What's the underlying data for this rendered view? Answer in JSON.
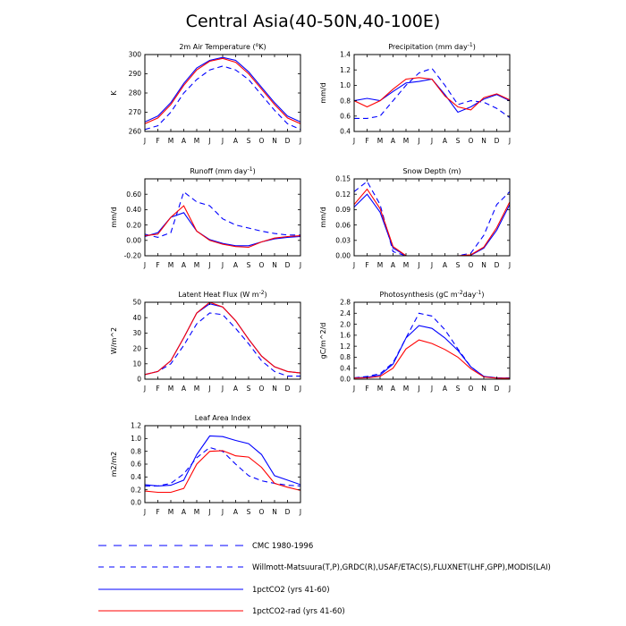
{
  "title": "Central Asia(40-50N,40-100E)",
  "months": [
    "J",
    "F",
    "M",
    "A",
    "M",
    "J",
    "J",
    "A",
    "S",
    "O",
    "N",
    "D",
    "J"
  ],
  "colors": {
    "cmc": "#0000ff",
    "obs": "#0000ff",
    "ctl": "#0000ff",
    "rad": "#ff0000"
  },
  "legend": {
    "cmc": "CMC 1980-1996",
    "obs": "Willmott-Matsuura(T,P),GRDC(R),USAF/ETAC(S),FLUXNET(LHF,GPP),MODIS(LAI)",
    "ctl": "1pctCO2 (yrs 41-60)",
    "rad": "1pctCO2-rad (yrs 41-60)"
  },
  "chart_data": [
    {
      "type": "line",
      "id": "tas",
      "title_main": "2m Air Temperature (",
      "title_sup": "o",
      "title_tail": "K)",
      "ylabel": "K",
      "ylim": [
        260,
        300
      ],
      "yticks": [
        "260",
        "270",
        "280",
        "290",
        "300"
      ],
      "series": [
        {
          "name": "Willmott-Matsuura",
          "style": "dash",
          "color": "obs",
          "values": [
            261,
            263,
            270,
            280,
            287,
            292,
            294,
            292,
            287,
            279,
            271,
            264,
            261
          ]
        },
        {
          "name": "1pctCO2 (yrs 41-60)",
          "style": "solid",
          "color": "ctl",
          "values": [
            265,
            268,
            275,
            285,
            293,
            297,
            298.5,
            297,
            291,
            283,
            275,
            268,
            265
          ]
        },
        {
          "name": "1pctCO2-rad (yrs 41-60)",
          "style": "solid",
          "color": "rad",
          "values": [
            264,
            267,
            274,
            284,
            292,
            296.5,
            298,
            296,
            290,
            282,
            274,
            267,
            264
          ]
        }
      ]
    },
    {
      "type": "line",
      "id": "pr",
      "title_main": "Precipitation (mm day",
      "title_sup": "-1",
      "title_tail": ")",
      "ylabel": "mm/d",
      "ylim": [
        0.4,
        1.4
      ],
      "yticks": [
        "0.4",
        "0.6",
        "0.8",
        "1.0",
        "1.2",
        "1.4"
      ],
      "series": [
        {
          "name": "Willmott-Matsuura",
          "style": "dash",
          "color": "obs",
          "values": [
            0.57,
            0.57,
            0.6,
            0.8,
            1.0,
            1.16,
            1.22,
            1.0,
            0.75,
            0.8,
            0.78,
            0.7,
            0.58
          ]
        },
        {
          "name": "1pctCO2 (yrs 41-60)",
          "style": "solid",
          "color": "ctl",
          "values": [
            0.8,
            0.83,
            0.8,
            0.92,
            1.03,
            1.05,
            1.08,
            0.88,
            0.65,
            0.72,
            0.82,
            0.88,
            0.8
          ]
        },
        {
          "name": "1pctCO2-rad (yrs 41-60)",
          "style": "solid",
          "color": "rad",
          "values": [
            0.8,
            0.72,
            0.8,
            0.95,
            1.08,
            1.1,
            1.08,
            0.86,
            0.72,
            0.68,
            0.84,
            0.89,
            0.81
          ]
        }
      ]
    },
    {
      "type": "line",
      "id": "mrro",
      "title_main": "Runoff (mm day",
      "title_sup": "-1",
      "title_tail": ")",
      "ylabel": "mm/d",
      "ylim": [
        -0.2,
        0.8
      ],
      "yticks": [
        "-0.20",
        "0.00",
        "0.20",
        "0.40",
        "0.60"
      ],
      "series": [
        {
          "name": "GRDC",
          "style": "dash",
          "color": "obs",
          "values": [
            0.08,
            0.04,
            0.1,
            0.63,
            0.5,
            0.45,
            0.28,
            0.2,
            0.16,
            0.12,
            0.09,
            0.07,
            0.07
          ]
        },
        {
          "name": "1pctCO2 (yrs 41-60)",
          "style": "solid",
          "color": "ctl",
          "values": [
            0.05,
            0.1,
            0.3,
            0.36,
            0.12,
            0.01,
            -0.04,
            -0.07,
            -0.07,
            -0.02,
            0.02,
            0.04,
            0.05
          ]
        },
        {
          "name": "1pctCO2-rad (yrs 41-60)",
          "style": "solid",
          "color": "rad",
          "values": [
            0.06,
            0.08,
            0.3,
            0.45,
            0.12,
            0.0,
            -0.05,
            -0.08,
            -0.09,
            -0.02,
            0.03,
            0.05,
            0.06
          ]
        }
      ]
    },
    {
      "type": "line",
      "id": "snd",
      "title_main": "Snow Depth (m)",
      "title_sup": "",
      "title_tail": "",
      "ylabel": "mm/d",
      "ylim": [
        0,
        0.15
      ],
      "yticks": [
        "0.00",
        "0.03",
        "0.06",
        "0.09",
        "0.12",
        "0.15"
      ],
      "series": [
        {
          "name": "CMC 1980-1996",
          "style": "dash",
          "color": "cmc",
          "values": [
            0.125,
            0.145,
            0.1,
            0.008,
            0.0,
            0.0,
            0.0,
            0.0,
            0.0,
            0.005,
            0.04,
            0.1,
            0.125
          ]
        },
        {
          "name": "1pctCO2 (yrs 41-60)",
          "style": "solid",
          "color": "ctl",
          "values": [
            0.095,
            0.12,
            0.085,
            0.015,
            0.0,
            0.0,
            0.0,
            0.0,
            0.0,
            0.001,
            0.015,
            0.05,
            0.1
          ]
        },
        {
          "name": "1pctCO2-rad (yrs 41-60)",
          "style": "solid",
          "color": "rad",
          "values": [
            0.1,
            0.13,
            0.092,
            0.018,
            0.0,
            0.0,
            0.0,
            0.0,
            0.0,
            0.002,
            0.017,
            0.055,
            0.105
          ]
        }
      ]
    },
    {
      "type": "line",
      "id": "hfls",
      "title_main": "Latent Heat Flux (W m",
      "title_sup": "-2",
      "title_tail": ")",
      "ylabel": "W/m^2",
      "ylim": [
        0,
        50
      ],
      "yticks": [
        "0",
        "10",
        "20",
        "30",
        "40",
        "50"
      ],
      "series": [
        {
          "name": "FLUXNET",
          "style": "dash",
          "color": "obs",
          "values": [
            3,
            5,
            10,
            22,
            36,
            43,
            42,
            33,
            23,
            12,
            5,
            2,
            2
          ]
        },
        {
          "name": "1pctCO2 (yrs 41-60)",
          "style": "solid",
          "color": "ctl",
          "values": [
            3,
            5,
            12,
            27,
            43,
            49,
            47,
            38,
            26,
            15,
            8,
            5,
            4
          ]
        },
        {
          "name": "1pctCO2-rad (yrs 41-60)",
          "style": "solid",
          "color": "rad",
          "values": [
            3,
            5,
            12,
            27,
            43,
            50,
            47,
            38,
            26,
            15,
            8,
            5,
            4
          ]
        }
      ]
    },
    {
      "type": "line",
      "id": "gpp",
      "title_main": "Photosynthesis (gC m",
      "title_sup": "-2",
      "title_tail": "day",
      "title_sup2": "-1",
      "title_tail2": ")",
      "ylabel": "gC/m^2/d",
      "ylim": [
        0,
        2.8
      ],
      "yticks": [
        "0.0",
        "0.4",
        "0.8",
        "1.2",
        "1.6",
        "2.0",
        "2.4",
        "2.8"
      ],
      "series": [
        {
          "name": "FLUXNET",
          "style": "dash",
          "color": "obs",
          "values": [
            0.05,
            0.1,
            0.2,
            0.6,
            1.5,
            2.4,
            2.3,
            1.8,
            1.1,
            0.45,
            0.1,
            0.05,
            0.05
          ]
        },
        {
          "name": "1pctCO2 (yrs 41-60)",
          "style": "solid",
          "color": "ctl",
          "values": [
            0.05,
            0.07,
            0.15,
            0.55,
            1.5,
            1.95,
            1.85,
            1.5,
            1.05,
            0.45,
            0.1,
            0.05,
            0.04
          ]
        },
        {
          "name": "1pctCO2-rad (yrs 41-60)",
          "style": "solid",
          "color": "rad",
          "values": [
            0.04,
            0.05,
            0.1,
            0.4,
            1.1,
            1.43,
            1.3,
            1.08,
            0.8,
            0.38,
            0.08,
            0.04,
            0.03
          ]
        }
      ]
    },
    {
      "type": "line",
      "id": "lai",
      "title_main": "Leaf Area Index",
      "title_sup": "",
      "title_tail": "",
      "ylabel": "m2/m2",
      "ylim": [
        0,
        1.2
      ],
      "yticks": [
        "0.0",
        "0.2",
        "0.4",
        "0.6",
        "0.8",
        "1.0",
        "1.2"
      ],
      "series": [
        {
          "name": "MODIS",
          "style": "dash",
          "color": "obs",
          "values": [
            0.26,
            0.26,
            0.3,
            0.45,
            0.7,
            0.86,
            0.8,
            0.6,
            0.42,
            0.34,
            0.3,
            0.27,
            0.26
          ]
        },
        {
          "name": "1pctCO2 (yrs 41-60)",
          "style": "solid",
          "color": "ctl",
          "values": [
            0.28,
            0.26,
            0.27,
            0.35,
            0.75,
            1.04,
            1.03,
            0.97,
            0.92,
            0.75,
            0.42,
            0.35,
            0.28
          ]
        },
        {
          "name": "1pctCO2-rad (yrs 41-60)",
          "style": "solid",
          "color": "rad",
          "values": [
            0.18,
            0.16,
            0.16,
            0.22,
            0.6,
            0.8,
            0.81,
            0.73,
            0.71,
            0.55,
            0.3,
            0.24,
            0.19
          ]
        }
      ]
    }
  ]
}
